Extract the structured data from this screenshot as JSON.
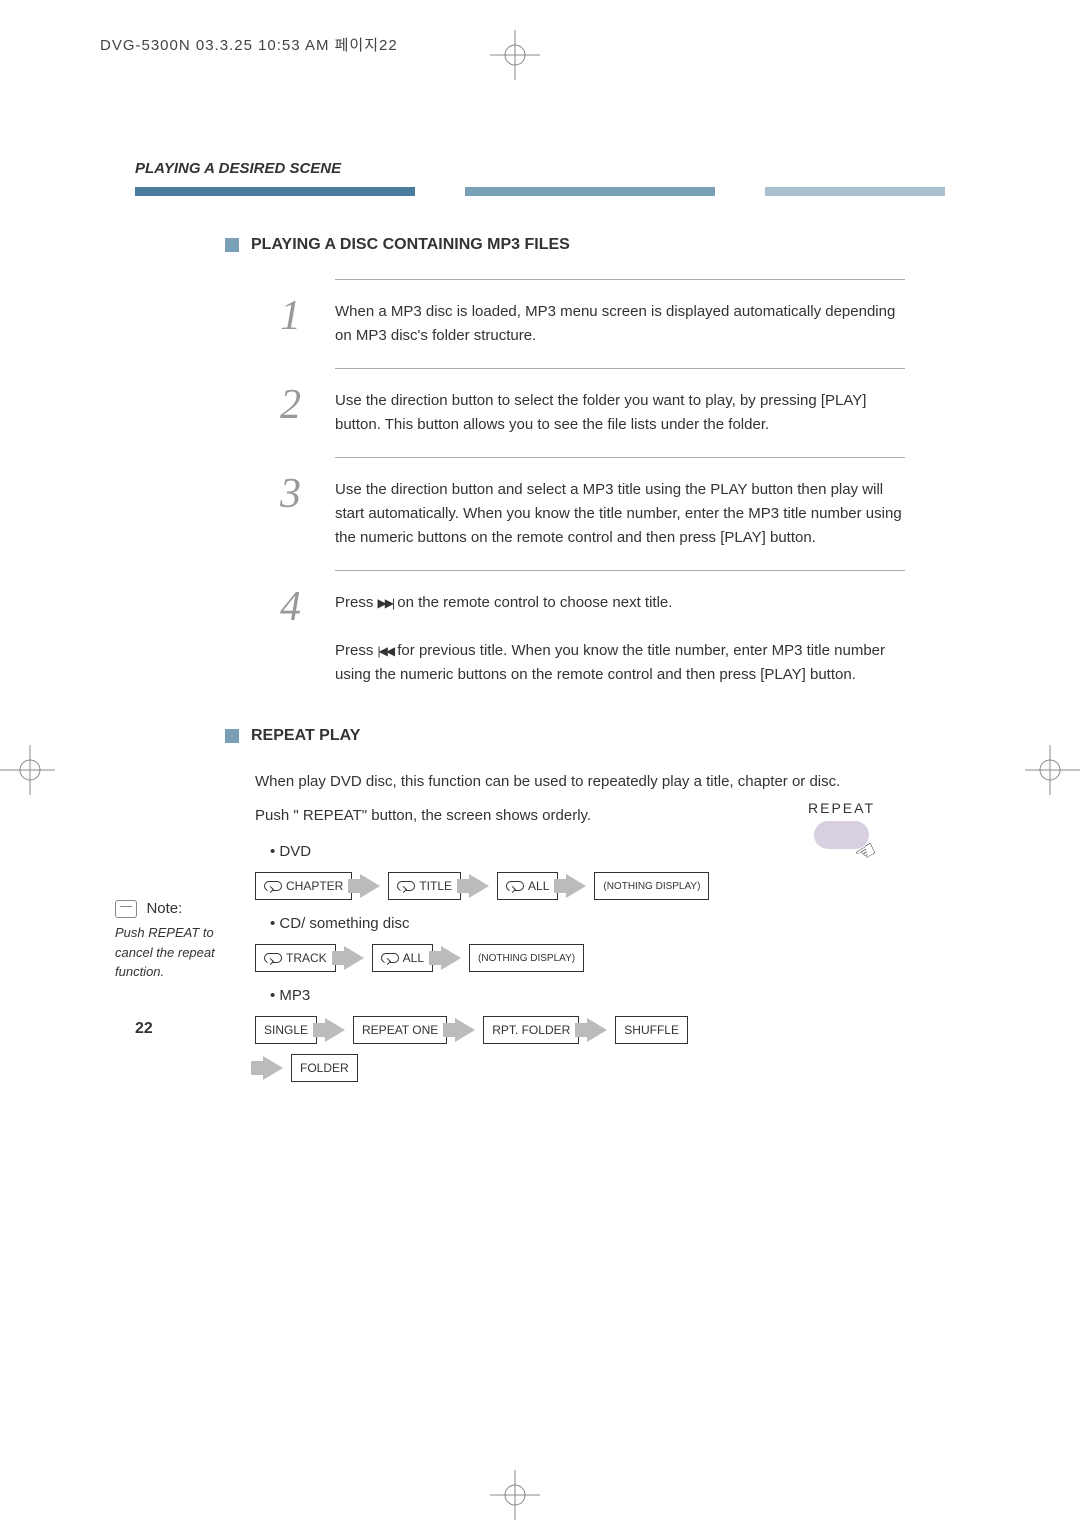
{
  "header": "DVG-5300N  03.3.25  10:53 AM  페이지22",
  "section_title": "PLAYING A DESIRED SCENE",
  "heading1": "PLAYING A DISC CONTAINING MP3 FILES",
  "steps": [
    {
      "num": "1",
      "text": "When a MP3 disc is loaded, MP3 menu screen is displayed automatically depending on MP3 disc's folder structure."
    },
    {
      "num": "2",
      "text": "Use the direction button to select the folder you want to play, by pressing  [PLAY] button. This button allows you to see the file lists under the folder."
    },
    {
      "num": "3",
      "text": "Use the direction button and select a MP3 title using the PLAY button then play will start automatically. When you know the title number, enter the MP3 title number using the numeric buttons on the remote control and then press [PLAY] button."
    }
  ],
  "step4": {
    "num": "4",
    "line1_before": "Press ",
    "line1_after": " on the remote control to choose next title.",
    "line2_before": "Press",
    "line2_after": " for previous title. When you know the title number, enter MP3 title number using the numeric buttons on the remote control and then press [PLAY] button."
  },
  "heading2": "REPEAT PLAY",
  "repeat_intro": "When play DVD disc, this function can be used to repeatedly play a title, chapter or disc.",
  "repeat_push": "Push \" REPEAT\"  button, the screen shows orderly.",
  "repeat_label": "REPEAT",
  "note": {
    "title": "Note:",
    "text": "Push REPEAT to cancel the repeat function."
  },
  "groups": [
    {
      "label": "•  DVD",
      "items": [
        {
          "text": "CHAPTER",
          "loop": true
        },
        {
          "text": "TITLE",
          "loop": true
        },
        {
          "text": "ALL",
          "loop": true
        },
        {
          "text": "(NOTHING DISPLAY)",
          "loop": false,
          "small": true
        }
      ]
    },
    {
      "label": "•  CD/ something disc",
      "items": [
        {
          "text": "TRACK",
          "loop": true
        },
        {
          "text": "ALL",
          "loop": true
        },
        {
          "text": "(NOTHING DISPLAY)",
          "loop": false,
          "small": true
        }
      ]
    },
    {
      "label": "•  MP3",
      "items": [
        {
          "text": "SINGLE",
          "loop": false
        },
        {
          "text": "REPEAT ONE",
          "loop": false
        },
        {
          "text": "RPT. FOLDER",
          "loop": false
        },
        {
          "text": "SHUFFLE",
          "loop": false
        }
      ],
      "items2": [
        {
          "text": "FOLDER",
          "loop": false
        }
      ]
    }
  ],
  "page_number": "22",
  "colors": {
    "bar1": "#4a7c9e",
    "bar2": "#7aa0b8",
    "bar3": "#a8c0d0",
    "bullet": "#7aa0b8",
    "arrow": "#bbbbbb",
    "step_num": "#999999",
    "repeat_btn": "#d8d0e0"
  }
}
